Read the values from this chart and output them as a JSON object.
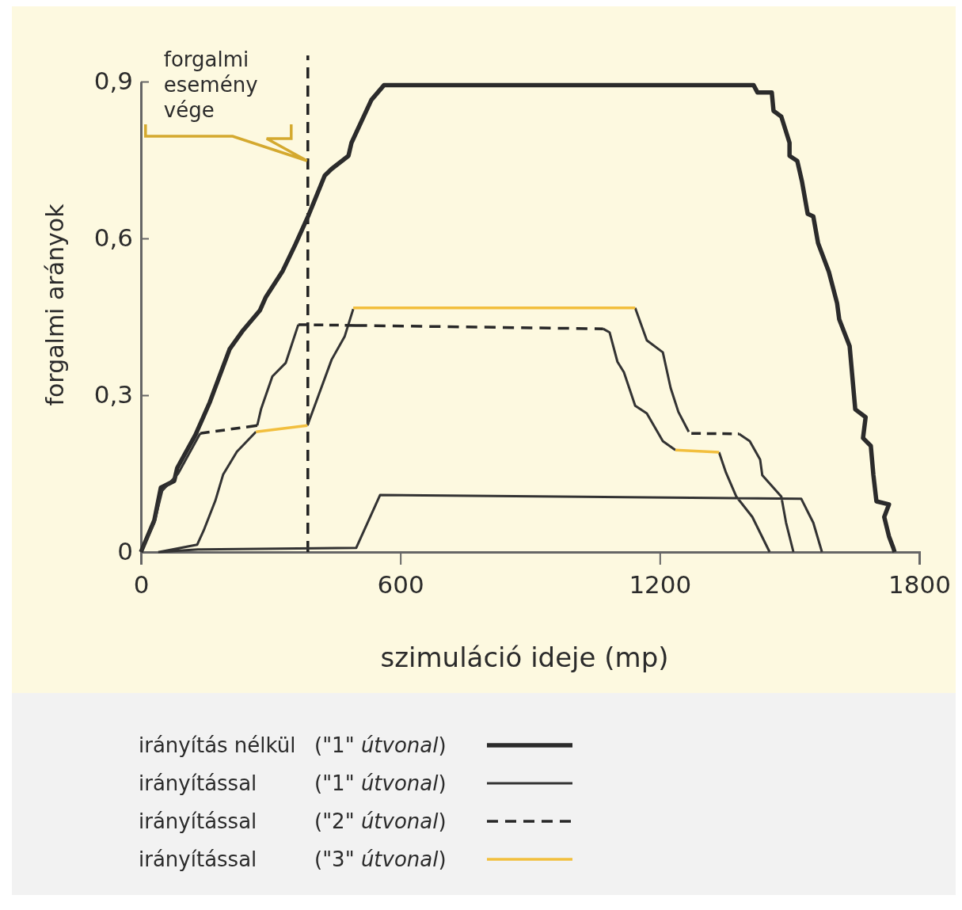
{
  "chart_data": {
    "type": "line",
    "xlabel": "szimuláció ideje (mp)",
    "ylabel": "forgalmi arányok",
    "xlim": [
      0,
      1800
    ],
    "xticks": [
      0,
      600,
      1200,
      1800
    ],
    "ylim": [
      0,
      0.9
    ],
    "yticks": [
      0,
      {
        "value": 0.3,
        "label": "0,3"
      },
      {
        "value": 0.6,
        "label": "0,6"
      },
      {
        "value": 0.9,
        "label": "0,9"
      }
    ],
    "grid": false,
    "legend": "bottom",
    "marker": "none",
    "ref_lines": [
      {
        "axis": "x",
        "value": 386,
        "label": "forgalmi esemény vége",
        "color": "#222222",
        "line_style": "dashed"
      }
    ],
    "series": [
      {
        "name": "irányítás nélkül (\"1\" útvonal)",
        "color": "#2b2b2b",
        "line_style": "solid",
        "x": [
          0,
          31,
          46,
          77,
          84,
          126,
          159,
          168,
          205,
          236,
          275,
          289,
          328,
          357,
          388,
          425,
          441,
          480,
          487,
          533,
          562,
          1417,
          1426,
          1459,
          1463,
          1481,
          1500,
          1500,
          1518,
          1529,
          1542,
          1555,
          1566,
          1591,
          1610,
          1615,
          1639,
          1652,
          1676,
          1670,
          1688,
          1694,
          1701,
          1730,
          1719,
          1730,
          1740,
          1743
        ],
        "values": [
          0,
          0.061,
          0.123,
          0.136,
          0.161,
          0.224,
          0.286,
          0.306,
          0.388,
          0.424,
          0.462,
          0.488,
          0.538,
          0.588,
          0.645,
          0.72,
          0.733,
          0.758,
          0.783,
          0.865,
          0.893,
          0.893,
          0.879,
          0.879,
          0.844,
          0.833,
          0.783,
          0.758,
          0.748,
          0.708,
          0.647,
          0.642,
          0.591,
          0.536,
          0.476,
          0.445,
          0.394,
          0.273,
          0.258,
          0.218,
          0.203,
          0.147,
          0.097,
          0.091,
          0.067,
          0.03,
          0.008,
          0
        ]
      },
      {
        "name": "irányítással (\"1\" útvonal)",
        "color": "#333333",
        "line_style": "solid",
        "x": [
          0,
          31,
          49,
          86,
          137,
          null,
          269,
          278,
          304,
          335,
          350,
          364,
          null,
          1069,
          1084,
          1102,
          1117,
          1143,
          1170,
          1207,
          1236,
          null,
          1337,
          1353,
          1377,
          1414,
          1454,
          null,
          42,
          130,
          145,
          172,
          190,
          222,
          266,
          null,
          385,
          410,
          441,
          471,
          491,
          null,
          1143,
          1170,
          1207,
          1225,
          1243,
          1267,
          null,
          1383,
          1408,
          1432,
          1437,
          1481,
          1492,
          1509,
          null,
          40,
          132,
          498,
          553,
          1527,
          1555,
          1575
        ],
        "values": [
          0,
          0.056,
          0.117,
          0.15,
          0.227,
          null,
          0.242,
          0.274,
          0.336,
          0.362,
          0.4,
          0.435,
          null,
          0.427,
          0.42,
          0.364,
          0.344,
          0.28,
          0.265,
          0.212,
          0.195,
          null,
          0.191,
          0.152,
          0.106,
          0.067,
          0,
          null,
          0,
          0.014,
          0.041,
          0.098,
          0.148,
          0.192,
          0.23,
          null,
          0.242,
          0.298,
          0.368,
          0.412,
          0.465,
          null,
          0.467,
          0.405,
          0.382,
          0.314,
          0.268,
          0.23,
          null,
          0.226,
          0.212,
          0.177,
          0.147,
          0.106,
          0.056,
          0,
          null,
          0,
          0.005,
          0.008,
          0.109,
          0.102,
          0.056,
          0
        ]
      },
      {
        "name": "irányítással (\"2\" útvonal)",
        "color": "#282828",
        "line_style": "dashed",
        "x": [
          137,
          269,
          null,
          364,
          1069,
          null,
          1273,
          1383
        ],
        "values": [
          0.227,
          0.242,
          null,
          0.435,
          0.427,
          null,
          0.227,
          0.226
        ]
      },
      {
        "name": "irányítással (\"3\" útvonal)",
        "color": "#f2bf3e",
        "line_style": "solid",
        "x": [
          266,
          385,
          null,
          491,
          1143,
          null,
          1236,
          1337
        ],
        "values": [
          0.23,
          0.242,
          null,
          0.467,
          0.467,
          null,
          0.195,
          0.191
        ]
      }
    ]
  }
}
